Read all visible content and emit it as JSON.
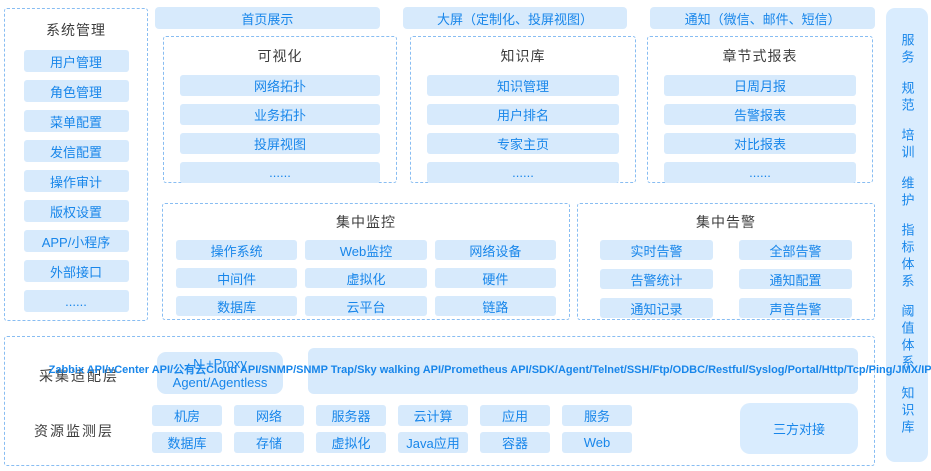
{
  "colors": {
    "accent_text": "#1886ea",
    "chip_bg": "#d7eafc",
    "dashed_border": "#88bdf2",
    "title_text": "#3d3d3d",
    "bar_bg": "#d9ecfe"
  },
  "sidebar": {
    "title": "系统管理",
    "items": [
      "用户管理",
      "角色管理",
      "菜单配置",
      "发信配置",
      "操作审计",
      "版权设置",
      "APP/小程序",
      "外部接口",
      "......"
    ]
  },
  "top_row": {
    "items": [
      "首页展示",
      "大屏（定制化、投屏视图）",
      "通知（微信、邮件、短信）"
    ]
  },
  "sections": [
    {
      "title": "可视化",
      "items": [
        "网络拓扑",
        "业务拓扑",
        "投屏视图",
        "......"
      ]
    },
    {
      "title": "知识库",
      "items": [
        "知识管理",
        "用户排名",
        "专家主页",
        "......"
      ]
    },
    {
      "title": "章节式报表",
      "items": [
        "日周月报",
        "告警报表",
        "对比报表",
        "......"
      ]
    }
  ],
  "monitoring": {
    "title": "集中监控",
    "items": [
      "操作系统",
      "Web监控",
      "网络设备",
      "中间件",
      "虚拟化",
      "硬件",
      "数据库",
      "云平台",
      "链路"
    ]
  },
  "alerting": {
    "title": "集中告警",
    "items": [
      "实时告警",
      "全部告警",
      "告警统计",
      "通知配置",
      "通知记录",
      "声音告警"
    ]
  },
  "right_bar": {
    "items": [
      "服务",
      "规范",
      "培训",
      "维护",
      "指标体系",
      "阈值体系",
      "知识库"
    ]
  },
  "bottom": {
    "adapter_label": "采集适配层",
    "agent_button": "N +Proxy\nAgent/Agentless",
    "protocols": "Zabbix API/vCenter API/公有云Cloud API/SNMP/SNMP Trap/Sky walking API/Prometheus API/SDK/Agent/Telnet/SSH/Ftp/ODBC/Restful/Syslog/Portal/Http/Tcp/Ping/JMX/IPMI/WMI/SMI-S/SQL/Modbus/日志......",
    "resource_label": "资源监测层",
    "resource_row1": [
      "机房",
      "网络",
      "服务器",
      "云计算",
      "应用",
      "服务"
    ],
    "resource_row2": [
      "数据库",
      "存储",
      "虚拟化",
      "Java应用",
      "容器",
      "Web"
    ],
    "third_party": "三方对接"
  }
}
